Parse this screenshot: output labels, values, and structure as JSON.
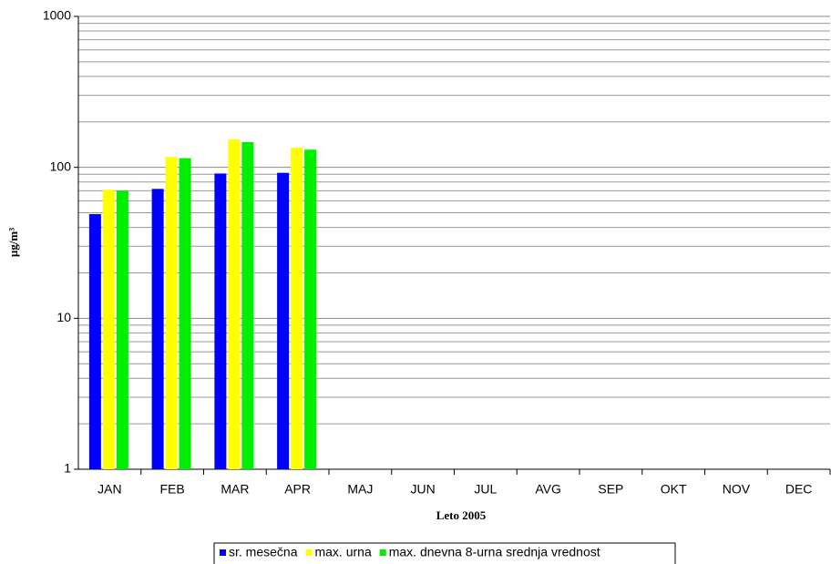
{
  "chart_data": {
    "type": "bar",
    "log_scale": true,
    "grid": true,
    "x_label": "Leto 2005",
    "y_label": "µg/m³",
    "categories": [
      "JAN",
      "FEB",
      "MAR",
      "APR",
      "MAJ",
      "JUN",
      "JUL",
      "AVG",
      "SEP",
      "OKT",
      "NOV",
      "DEC"
    ],
    "series": [
      {
        "name": "sr. mesečna",
        "color": "#0000ff",
        "values": [
          49,
          72,
          91,
          92,
          null,
          null,
          null,
          null,
          null,
          null,
          null,
          null
        ]
      },
      {
        "name": "max. urna",
        "color": "#ffff00",
        "values": [
          71,
          117,
          153,
          135,
          null,
          null,
          null,
          null,
          null,
          null,
          null,
          null
        ]
      },
      {
        "name": "max. dnevna 8-urna srednja vrednost",
        "color": "#00ee00",
        "values": [
          70,
          115,
          147,
          131,
          null,
          null,
          null,
          null,
          null,
          null,
          null,
          null
        ]
      }
    ],
    "ylim": [
      1,
      1000
    ],
    "yticks": [
      1,
      10,
      100,
      1000
    ],
    "minor_yticks": [
      2,
      3,
      4,
      5,
      6,
      7,
      8,
      9,
      20,
      30,
      40,
      50,
      60,
      70,
      80,
      90,
      200,
      300,
      400,
      500,
      600,
      700,
      800,
      900
    ],
    "legend_position": "bottom"
  }
}
